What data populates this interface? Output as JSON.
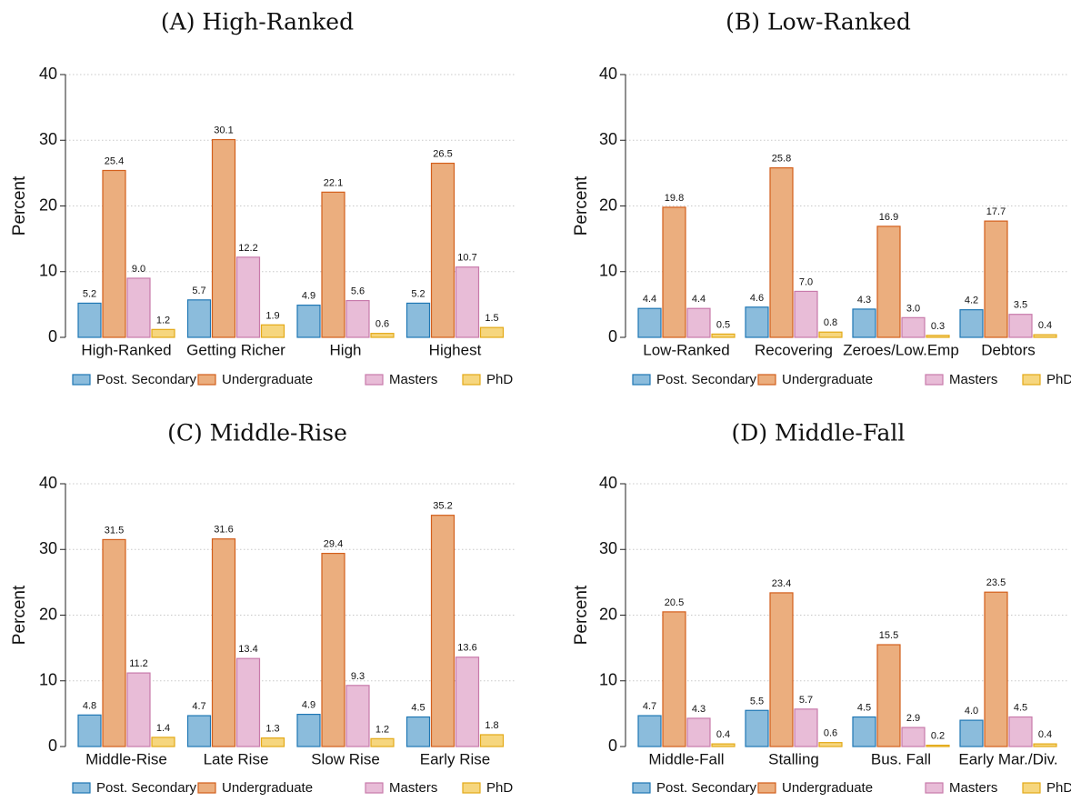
{
  "series_style": [
    {
      "fill": "#8bbcdc",
      "stroke": "#1f77b4"
    },
    {
      "fill": "#ebae7e",
      "stroke": "#d35f1c"
    },
    {
      "fill": "#e8bcd7",
      "stroke": "#c87aab"
    },
    {
      "fill": "#f6d67e",
      "stroke": "#e3a917"
    }
  ],
  "chart_data": [
    {
      "type": "bar",
      "title": "(A) High-Ranked",
      "ylabel": "Percent",
      "ylim": [
        0,
        40
      ],
      "yticks": [
        0,
        10,
        20,
        30,
        40
      ],
      "grid": true,
      "legend": "bottom",
      "categories": [
        "High-Ranked",
        "Getting Richer",
        "High",
        "Highest"
      ],
      "series": [
        {
          "name": "Post. Secondary",
          "values": [
            5.2,
            5.7,
            4.9,
            5.2
          ],
          "labels": [
            "5.2",
            "5.7",
            "4.9",
            "5.2"
          ]
        },
        {
          "name": "Undergraduate",
          "values": [
            25.4,
            30.1,
            22.1,
            26.5
          ],
          "labels": [
            "25.4",
            "30.1",
            "22.1",
            "26.5"
          ]
        },
        {
          "name": "Masters",
          "values": [
            9.0,
            12.2,
            5.6,
            10.7
          ],
          "labels": [
            "9.0",
            "12.2",
            "5.6",
            "10.7"
          ]
        },
        {
          "name": "PhD",
          "values": [
            1.2,
            1.9,
            0.6,
            1.5
          ],
          "labels": [
            "1.2",
            "1.9",
            "0.6",
            "1.5"
          ]
        }
      ]
    },
    {
      "type": "bar",
      "title": "(B) Low-Ranked",
      "ylabel": "Percent",
      "ylim": [
        0,
        40
      ],
      "yticks": [
        0,
        10,
        20,
        30,
        40
      ],
      "grid": true,
      "legend": "bottom",
      "categories": [
        "Low-Ranked",
        "Recovering",
        "Zeroes/Low.Emp",
        "Debtors"
      ],
      "series": [
        {
          "name": "Post. Secondary",
          "values": [
            4.4,
            4.6,
            4.3,
            4.2
          ],
          "labels": [
            "4.4",
            "4.6",
            "4.3",
            "4.2"
          ]
        },
        {
          "name": "Undergraduate",
          "values": [
            19.8,
            25.8,
            16.9,
            17.7
          ],
          "labels": [
            "19.8",
            "25.8",
            "16.9",
            "17.7"
          ]
        },
        {
          "name": "Masters",
          "values": [
            4.4,
            7.0,
            3.0,
            3.5
          ],
          "labels": [
            "4.4",
            "7.0",
            "3.0",
            "3.5"
          ]
        },
        {
          "name": "PhD",
          "values": [
            0.5,
            0.8,
            0.3,
            0.4
          ],
          "labels": [
            "0.5",
            "0.8",
            "0.3",
            "0.4"
          ]
        }
      ]
    },
    {
      "type": "bar",
      "title": "(C) Middle-Rise",
      "ylabel": "Percent",
      "ylim": [
        0,
        40
      ],
      "yticks": [
        0,
        10,
        20,
        30,
        40
      ],
      "grid": true,
      "legend": "bottom",
      "categories": [
        "Middle-Rise",
        "Late Rise",
        "Slow Rise",
        "Early Rise"
      ],
      "series": [
        {
          "name": "Post. Secondary",
          "values": [
            4.8,
            4.7,
            4.9,
            4.5
          ],
          "labels": [
            "4.8",
            "4.7",
            "4.9",
            "4.5"
          ]
        },
        {
          "name": "Undergraduate",
          "values": [
            31.5,
            31.6,
            29.4,
            35.2
          ],
          "labels": [
            "31.5",
            "31.6",
            "29.4",
            "35.2"
          ]
        },
        {
          "name": "Masters",
          "values": [
            11.2,
            13.4,
            9.3,
            13.6
          ],
          "labels": [
            "11.2",
            "13.4",
            "9.3",
            "13.6"
          ]
        },
        {
          "name": "PhD",
          "values": [
            1.4,
            1.3,
            1.2,
            1.8
          ],
          "labels": [
            "1.4",
            "1.3",
            "1.2",
            "1.8"
          ]
        }
      ]
    },
    {
      "type": "bar",
      "title": "(D) Middle-Fall",
      "ylabel": "Percent",
      "ylim": [
        0,
        40
      ],
      "yticks": [
        0,
        10,
        20,
        30,
        40
      ],
      "grid": true,
      "legend": "bottom",
      "categories": [
        "Middle-Fall",
        "Stalling",
        "Bus. Fall",
        "Early Mar./Div."
      ],
      "series": [
        {
          "name": "Post. Secondary",
          "values": [
            4.7,
            5.5,
            4.5,
            4.0
          ],
          "labels": [
            "4.7",
            "5.5",
            "4.5",
            "4.0"
          ]
        },
        {
          "name": "Undergraduate",
          "values": [
            20.5,
            23.4,
            15.5,
            23.5
          ],
          "labels": [
            "20.5",
            "23.4",
            "15.5",
            "23.5"
          ]
        },
        {
          "name": "Masters",
          "values": [
            4.3,
            5.7,
            2.9,
            4.5
          ],
          "labels": [
            "4.3",
            "5.7",
            "2.9",
            "4.5"
          ]
        },
        {
          "name": "PhD",
          "values": [
            0.4,
            0.6,
            0.2,
            0.4
          ],
          "labels": [
            "0.4",
            "0.6",
            "0.2",
            "0.4"
          ]
        }
      ]
    }
  ]
}
